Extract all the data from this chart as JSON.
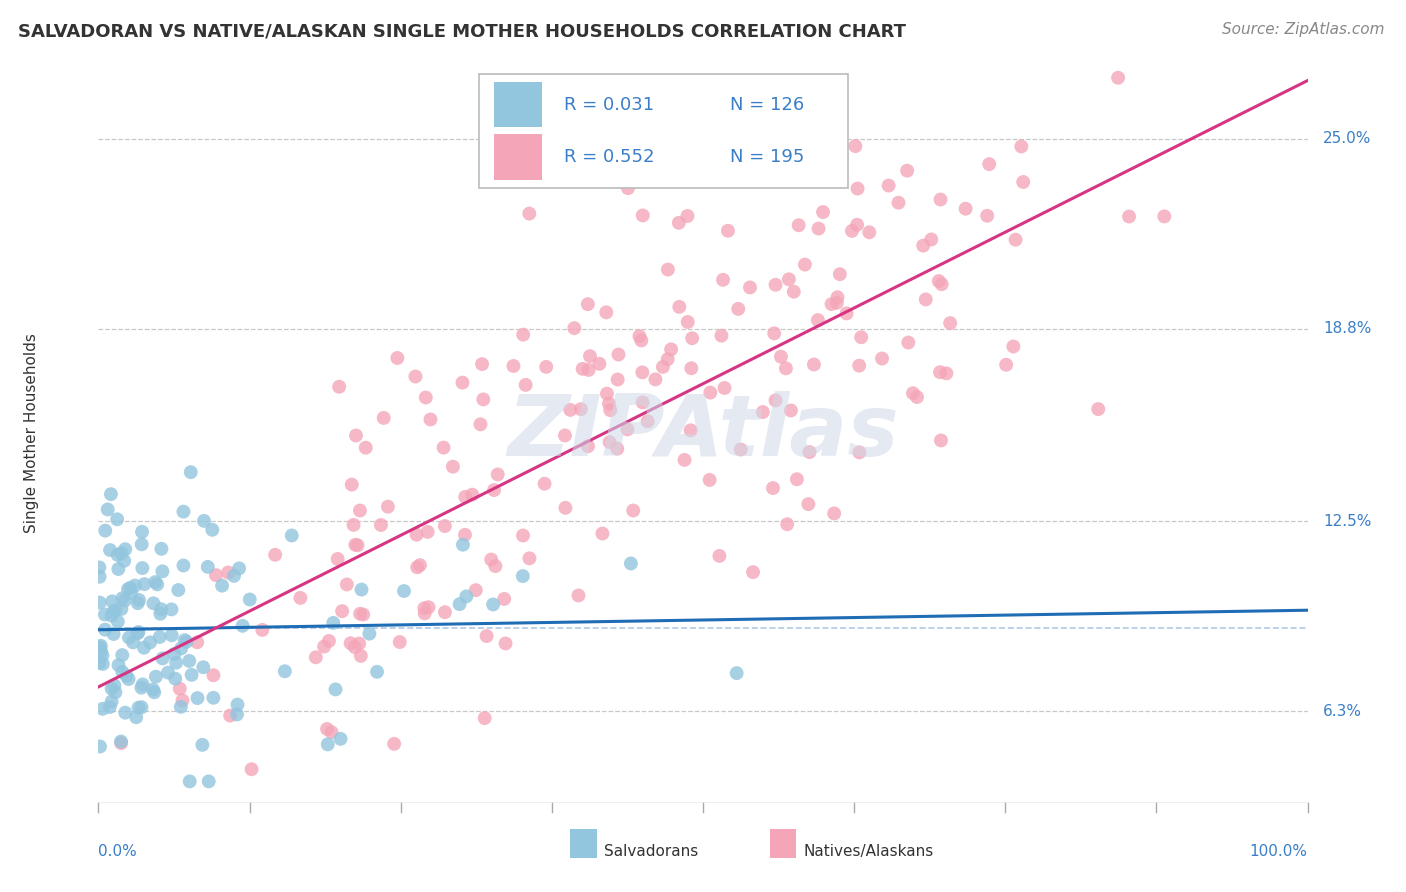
{
  "title": "SALVADORAN VS NATIVE/ALASKAN SINGLE MOTHER HOUSEHOLDS CORRELATION CHART",
  "source": "Source: ZipAtlas.com",
  "ylabel": "Single Mother Households",
  "blue_color": "#92c5de",
  "pink_color": "#f4a6b8",
  "blue_line_color": "#1f6db5",
  "pink_line_color": "#d63584",
  "blue_dash_color": "#90b4d8",
  "ytick_labels": [
    "6.3%",
    "12.5%",
    "18.8%",
    "25.0%"
  ],
  "ytick_values": [
    0.063,
    0.125,
    0.188,
    0.25
  ],
  "xmin": 0.0,
  "xmax": 1.0,
  "ymin": 0.033,
  "ymax": 0.275,
  "blue_R": 0.031,
  "pink_R": 0.552,
  "blue_N": 126,
  "pink_N": 195,
  "watermark": "ZIPAtlas",
  "background_color": "#ffffff",
  "grid_color": "#c8c8c8",
  "title_fontsize": 13,
  "axis_label_fontsize": 11,
  "tick_fontsize": 11,
  "source_fontsize": 11,
  "legend_fontsize": 13
}
